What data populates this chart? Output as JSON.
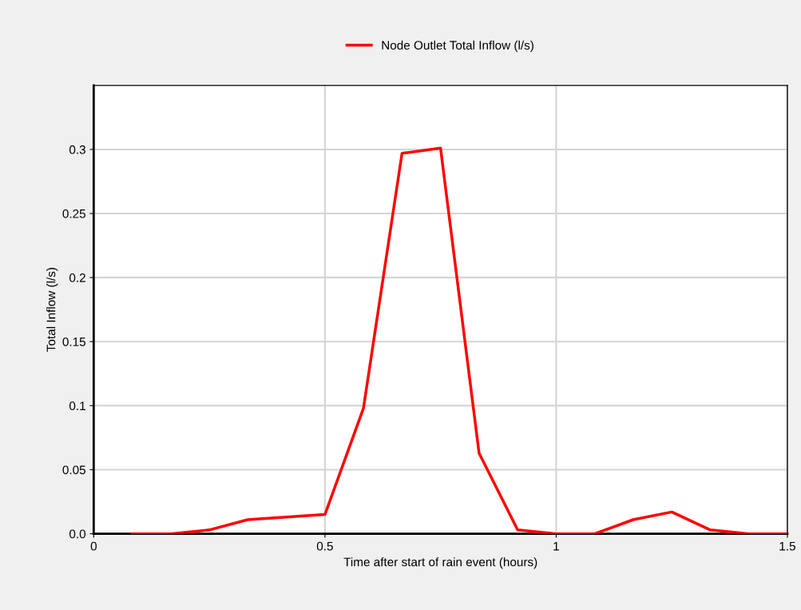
{
  "chart_data": {
    "type": "line",
    "xlabel": "Time after start of rain event (hours)",
    "ylabel": "Total Inflow (l/s)",
    "x": [
      0.0833,
      0.1667,
      0.25,
      0.3333,
      0.4167,
      0.5,
      0.5833,
      0.6667,
      0.75,
      0.8333,
      0.9167,
      1.0,
      1.0833,
      1.1667,
      1.25,
      1.3333,
      1.4167,
      1.5
    ],
    "series": [
      {
        "name": "Node Outlet Total Inflow (l/s)",
        "color": "#ff0000",
        "values": [
          0,
          0,
          0.003,
          0.011,
          0.013,
          0.015,
          0.098,
          0.297,
          0.301,
          0.063,
          0.003,
          0,
          0,
          0.011,
          0.017,
          0.003,
          0,
          0
        ]
      }
    ],
    "xlim": [
      0,
      1.5
    ],
    "xticks": [
      0,
      0.5,
      1,
      1.5
    ],
    "ylim": [
      0,
      0.35
    ],
    "yticks": [
      {
        "value": 0,
        "label": "0.0"
      },
      0.05,
      0.1,
      0.15,
      0.2,
      0.25,
      0.3
    ],
    "grid": true,
    "legend": "top",
    "marker": "none",
    "line_style": "solid"
  }
}
